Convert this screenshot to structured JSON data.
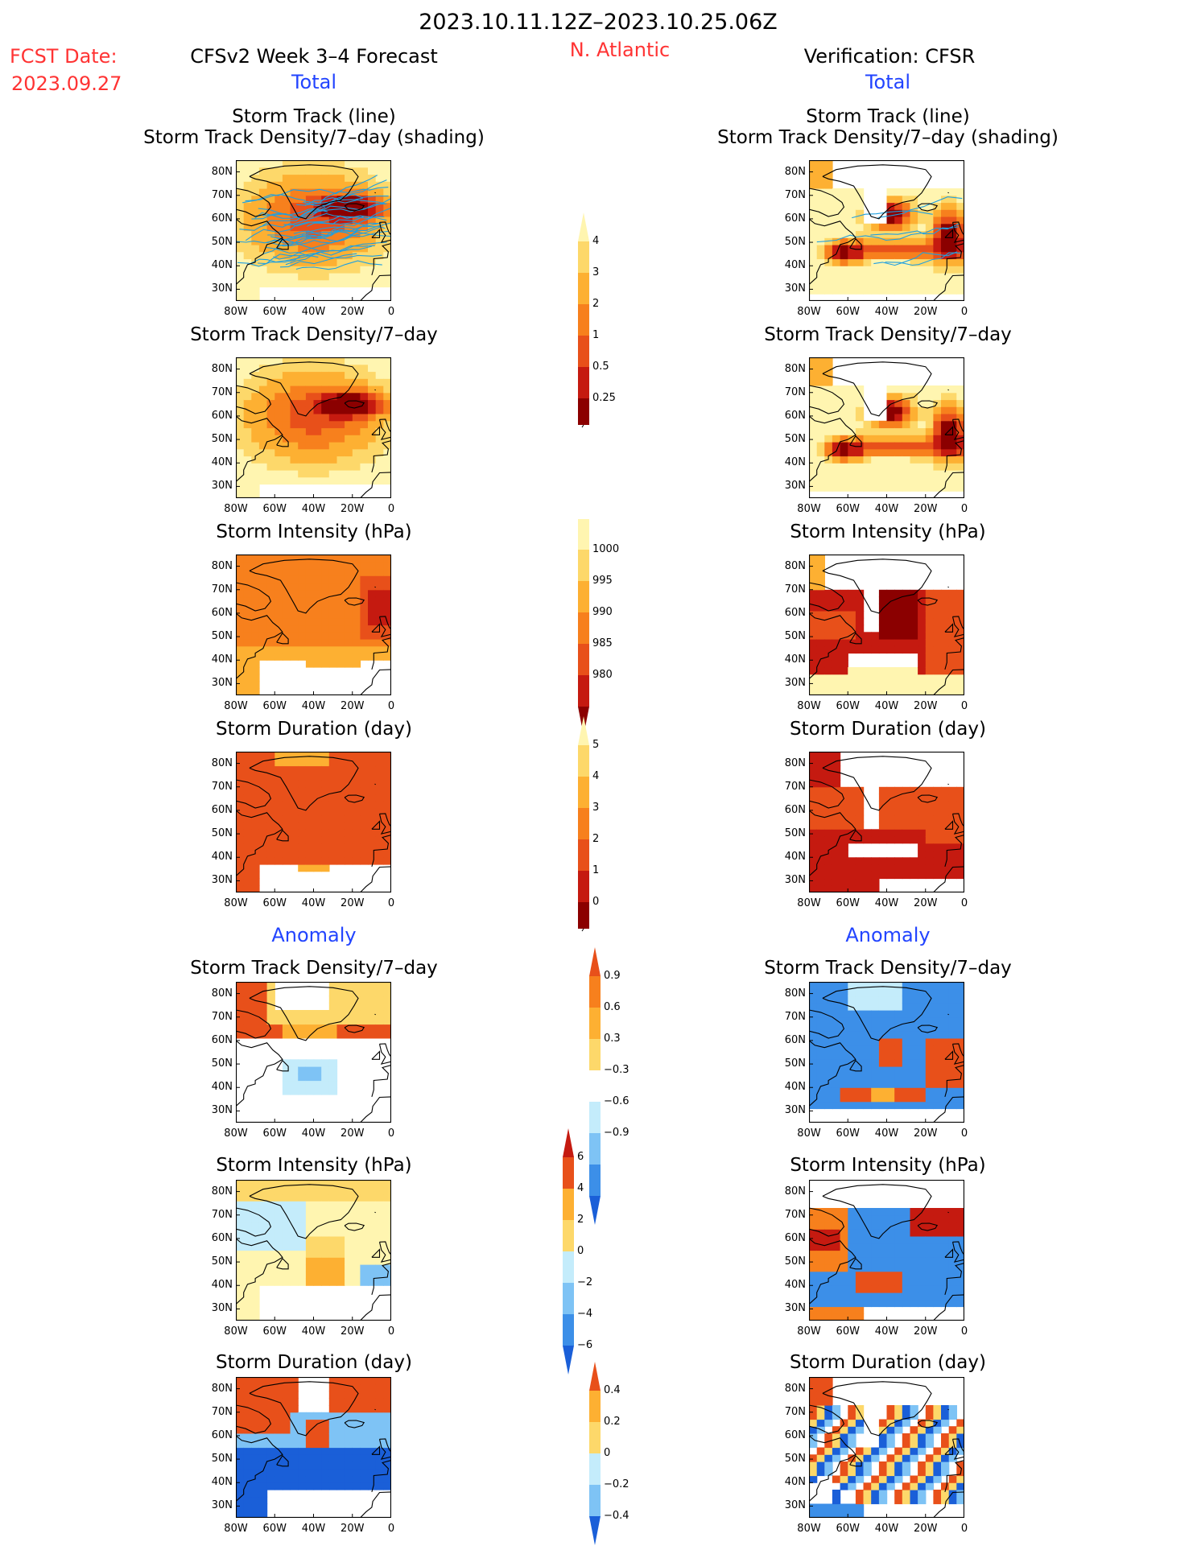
{
  "header": {
    "date_range": "2023.10.11.12Z–2023.10.25.06Z",
    "region": "N. Atlantic",
    "fcst_date_label": "FCST Date:",
    "fcst_date_value": "2023.09.27",
    "forecast_title": "CFSv2 Week 3–4 Forecast",
    "verification_title": "Verification: CFSR",
    "total_label": "Total",
    "anomaly_label": "Anomaly"
  },
  "titles": {
    "track_line": "Storm Track (line)",
    "track_density_shading": "Storm Track Density/7–day (shading)",
    "track_density": "Storm Track Density/7–day",
    "intensity": "Storm Intensity (hPa)",
    "duration": "Storm Duration (day)"
  },
  "axes": {
    "lat_ticks": [
      "80N",
      "70N",
      "60N",
      "50N",
      "40N",
      "30N"
    ],
    "lon_ticks": [
      "80W",
      "60W",
      "40W",
      "20W",
      "0"
    ]
  },
  "colors": {
    "c1": "#fff5b0",
    "c2": "#fdd86a",
    "c3": "#fdb032",
    "c4": "#f7801d",
    "c5": "#e8501a",
    "c6": "#c51a10",
    "c7": "#8b0000",
    "b1": "#c4ecfb",
    "b2": "#7ec3f5",
    "b3": "#3c8fe8",
    "b4": "#1a5fd8",
    "track_line": "#1e9fe0"
  },
  "colorbars": {
    "density": [
      "4",
      "3",
      "2",
      "1",
      "0.5",
      "0.25"
    ],
    "intensity": [
      "1000",
      "995",
      "990",
      "985",
      "980"
    ],
    "duration": [
      "5",
      "4",
      "3",
      "2",
      "1",
      "0"
    ],
    "density_anom": [
      "0.9",
      "0.6",
      "0.3",
      "−0.3",
      "−0.6",
      "−0.9"
    ],
    "intensity_anom": [
      "6",
      "4",
      "2",
      "0",
      "−2",
      "−4",
      "−6"
    ],
    "duration_anom": [
      "0.4",
      "0.2",
      "0",
      "−0.2",
      "−0.4"
    ]
  }
}
